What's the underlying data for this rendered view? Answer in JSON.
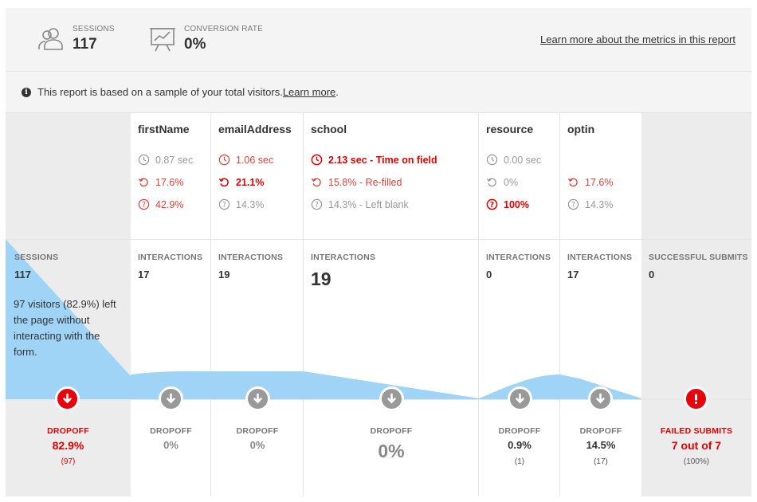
{
  "metrics": {
    "sessions_label": "SESSIONS",
    "sessions_value": "117",
    "conversion_label": "CONVERSION RATE",
    "conversion_value": "0%",
    "learn_link": "Learn more about the metrics in this report"
  },
  "note": {
    "text": "This report is based on a sample of your total visitors. ",
    "link": "Learn more",
    "end": "."
  },
  "sessions_col": {
    "label": "SESSIONS",
    "value": "117",
    "text": "97 visitors (82.9%) left the page without interacting with the form.",
    "drop_label": "DROPOFF",
    "drop_value": "82.9%",
    "drop_sub": "(97)"
  },
  "fields": [
    {
      "name": "firstName",
      "time": "0.87 sec",
      "refill": "17.6%",
      "blank": "42.9%",
      "int_label": "INTERACTIONS",
      "int_value": "17",
      "drop_label": "DROPOFF",
      "drop_value": "0%",
      "drop_sub": ""
    },
    {
      "name": "emailAddress",
      "time": "1.06 sec",
      "refill": "21.1%",
      "blank": "14.3%",
      "int_label": "INTERACTIONS",
      "int_value": "19",
      "drop_label": "DROPOFF",
      "drop_value": "0%",
      "drop_sub": ""
    },
    {
      "name": "school",
      "time": "2.13 sec - Time on field",
      "refill": "15.8% - Re-filled",
      "blank": "14.3% - Left blank",
      "int_label": "INTERACTIONS",
      "int_value": "19",
      "drop_label": "DROPOFF",
      "drop_value": "0%",
      "drop_sub": ""
    },
    {
      "name": "resource",
      "time": "0.00 sec",
      "refill": "0%",
      "blank": "100%",
      "int_label": "INTERACTIONS",
      "int_value": "0",
      "drop_label": "DROPOFF",
      "drop_value": "0.9%",
      "drop_sub": "(1)"
    },
    {
      "name": "optin",
      "time": "",
      "refill": "17.6%",
      "blank": "14.3%",
      "int_label": "INTERACTIONS",
      "int_value": "17",
      "drop_label": "DROPOFF",
      "drop_value": "14.5%",
      "drop_sub": "(17)"
    }
  ],
  "submits_col": {
    "label": "SUCCESSFUL SUBMITS",
    "value": "0",
    "drop_label": "FAILED SUBMITS",
    "drop_value": "7 out of 7",
    "drop_sub": "(100%)"
  },
  "colors": {
    "accent_red": "#e00000",
    "funnel_blue": "#9fd4f7",
    "icon_gray": "#999999"
  }
}
